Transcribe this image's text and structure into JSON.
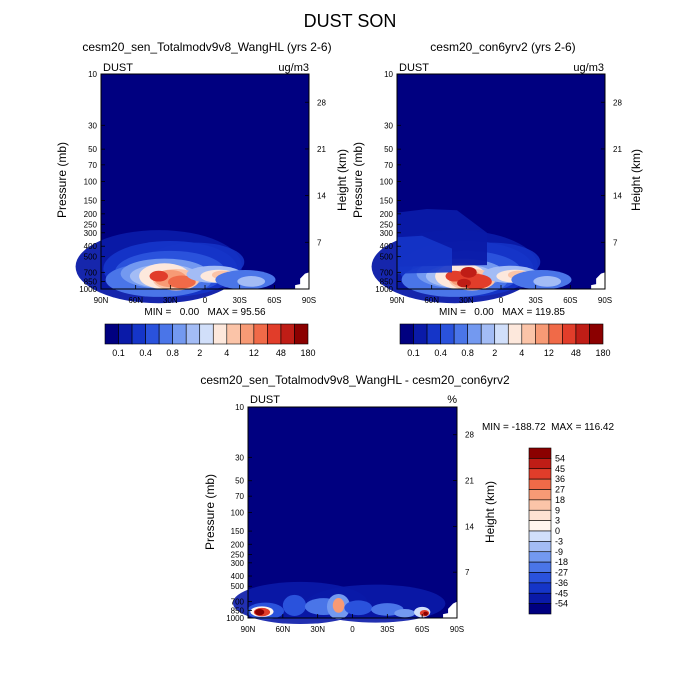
{
  "figure": {
    "title": "DUST SON"
  },
  "colors": {
    "background": "#000080",
    "abs_scale": [
      "#000080",
      "#0a1aa8",
      "#1535c8",
      "#2a52dc",
      "#4a75e8",
      "#7399f0",
      "#a3bcf5",
      "#d1dffa",
      "#fde8dc",
      "#fbc4a8",
      "#f79a75",
      "#f06a48",
      "#e13d2a",
      "#bf1d16",
      "#8b0000"
    ],
    "diff_scale": [
      "#000080",
      "#0a1aa8",
      "#1535c8",
      "#2a52dc",
      "#4a75e8",
      "#7399f0",
      "#a3bcf5",
      "#d1dffa",
      "#fff5ee",
      "#fde2d2",
      "#fbc4a8",
      "#f79a75",
      "#f06a48",
      "#e13d2a",
      "#bf1d16",
      "#8b0000"
    ]
  },
  "chart_data": [
    {
      "type": "heatmap",
      "id": "left",
      "title": "cesm20_sen_Totalmodv9v8_WangHL (yrs 2-6)",
      "left_label": "DUST",
      "right_label": "ug/m3",
      "xlabel": "",
      "ylabel": "Pressure (mb)",
      "y2label": "Height (km)",
      "x_ticks": [
        "90N",
        "60N",
        "30N",
        "0",
        "30S",
        "60S",
        "90S"
      ],
      "x_range": [
        90,
        -90
      ],
      "y_ticks": [
        "10",
        "30",
        "50",
        "70",
        "100",
        "150",
        "200",
        "250",
        "300",
        "400",
        "500",
        "700",
        "850",
        "1000"
      ],
      "y_range_mb": [
        10,
        1000
      ],
      "y2_ticks": [
        "28",
        "21",
        "14",
        "7"
      ],
      "min_max_text": "MIN =   0.00   MAX = 95.56",
      "min": 0.0,
      "max": 95.56,
      "colorbar_labels": [
        "0.1",
        "0.4",
        "0.8",
        "2",
        "4",
        "12",
        "48",
        "180"
      ],
      "colorbar_levels": [
        0.05,
        0.1,
        0.2,
        0.4,
        0.6,
        0.8,
        1,
        2,
        3,
        4,
        8,
        12,
        24,
        48,
        96,
        180
      ]
    },
    {
      "type": "heatmap",
      "id": "right",
      "title": "cesm20_con6yrv2 (yrs 2-6)",
      "left_label": "DUST",
      "right_label": "ug/m3",
      "xlabel": "",
      "ylabel": "Pressure (mb)",
      "y2label": "Height (km)",
      "x_ticks": [
        "90N",
        "60N",
        "30N",
        "0",
        "30S",
        "60S",
        "90S"
      ],
      "x_range": [
        90,
        -90
      ],
      "y_ticks": [
        "10",
        "30",
        "50",
        "70",
        "100",
        "150",
        "200",
        "250",
        "300",
        "400",
        "500",
        "700",
        "850",
        "1000"
      ],
      "y_range_mb": [
        10,
        1000
      ],
      "y2_ticks": [
        "28",
        "21",
        "14",
        "7"
      ],
      "min_max_text": "MIN =   0.00   MAX = 119.85",
      "min": 0.0,
      "max": 119.85,
      "colorbar_labels": [
        "0.1",
        "0.4",
        "0.8",
        "2",
        "4",
        "12",
        "48",
        "180"
      ],
      "colorbar_levels": [
        0.05,
        0.1,
        0.2,
        0.4,
        0.6,
        0.8,
        1,
        2,
        3,
        4,
        8,
        12,
        24,
        48,
        96,
        180
      ]
    },
    {
      "type": "heatmap",
      "id": "diff",
      "title": "cesm20_sen_Totalmodv9v8_WangHL - cesm20_con6yrv2",
      "left_label": "DUST",
      "right_label": "%",
      "xlabel": "",
      "ylabel": "Pressure (mb)",
      "y2label": "Height (km)",
      "x_ticks": [
        "90N",
        "60N",
        "30N",
        "0",
        "30S",
        "60S",
        "90S"
      ],
      "x_range": [
        90,
        -90
      ],
      "y_ticks": [
        "10",
        "30",
        "50",
        "70",
        "100",
        "150",
        "200",
        "250",
        "300",
        "400",
        "500",
        "700",
        "850",
        "1000"
      ],
      "y_range_mb": [
        10,
        1000
      ],
      "y2_ticks": [
        "28",
        "21",
        "14",
        "7"
      ],
      "min_max_text": "MIN = -188.72  MAX = 116.42",
      "min": -188.72,
      "max": 116.42,
      "colorbar_labels": [
        "54",
        "45",
        "36",
        "27",
        "18",
        "9",
        "3",
        "0",
        "-3",
        "-9",
        "-18",
        "-27",
        "-36",
        "-45",
        "-54"
      ]
    }
  ]
}
